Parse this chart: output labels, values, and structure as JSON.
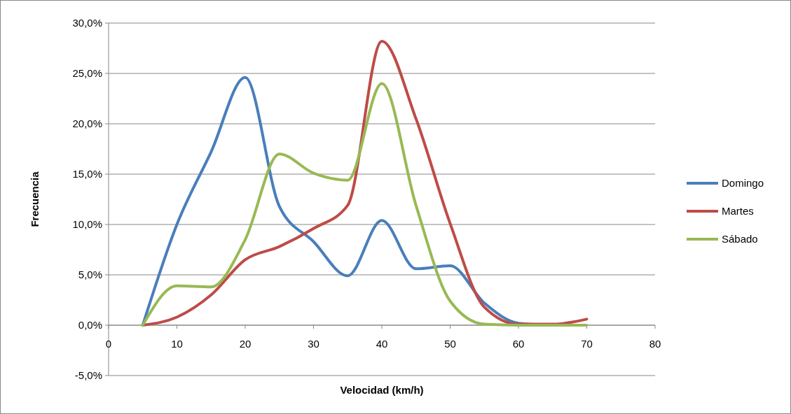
{
  "chart_data": {
    "type": "line",
    "xlabel": "Velocidad (km/h)",
    "ylabel": "Frecuencia",
    "x": [
      5,
      10,
      15,
      20,
      25,
      30,
      35,
      40,
      45,
      50,
      55,
      60,
      65,
      70
    ],
    "series": [
      {
        "name": "Domingo",
        "color": "#4a7ebb",
        "values": [
          0,
          10.0,
          17.2,
          24.6,
          11.8,
          8.3,
          4.9,
          10.4,
          5.6,
          5.9,
          2.2,
          0.2,
          0,
          null
        ]
      },
      {
        "name": "Martes",
        "color": "#be4b48",
        "values": [
          0,
          0.8,
          3.0,
          6.5,
          7.8,
          9.6,
          11.9,
          28.2,
          20.5,
          10.1,
          1.8,
          0.1,
          0.1,
          0.6
        ]
      },
      {
        "name": "Sábado",
        "color": "#98b954",
        "values": [
          0,
          3.9,
          3.8,
          8.5,
          17.0,
          15.1,
          14.4,
          24.0,
          11.9,
          2.4,
          0.1,
          0,
          0,
          0
        ]
      }
    ],
    "xlim": [
      0,
      80
    ],
    "xticks": [
      0,
      10,
      20,
      30,
      40,
      50,
      60,
      70,
      80
    ],
    "ylim": [
      -5,
      30
    ],
    "yticks": [
      {
        "value": -5,
        "label": "-5,0%"
      },
      {
        "value": 0,
        "label": "0,0%"
      },
      {
        "value": 5,
        "label": "5,0%"
      },
      {
        "value": 10,
        "label": "10,0%"
      },
      {
        "value": 15,
        "label": "15,0%"
      },
      {
        "value": 20,
        "label": "20,0%"
      },
      {
        "value": 25,
        "label": "25,0%"
      },
      {
        "value": 30,
        "label": "30,0%"
      }
    ],
    "grid": "y",
    "legend": "right",
    "marker": "none",
    "line_style": "solid"
  }
}
